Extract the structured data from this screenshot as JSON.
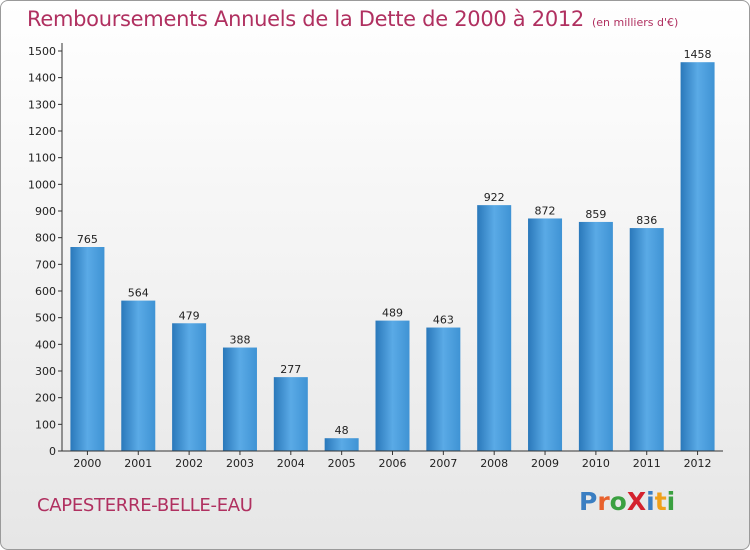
{
  "header": {
    "title": "Remboursements Annuels de la Dette de 2000 à 2012",
    "unit": "(en milliers d'€)"
  },
  "footer": {
    "commune": "CAPESTERRE-BELLE-EAU",
    "logo_letters": [
      {
        "ch": "P",
        "color": "#3a7ec2"
      },
      {
        "ch": "r",
        "color": "#e8612c"
      },
      {
        "ch": "o",
        "color": "#3aa040"
      },
      {
        "ch": "X",
        "color": "#d4222e"
      },
      {
        "ch": "i",
        "color": "#3a7ec2"
      },
      {
        "ch": "t",
        "color": "#f0a01a"
      },
      {
        "ch": "i",
        "color": "#3aa040"
      }
    ]
  },
  "chart_data": {
    "type": "bar",
    "categories": [
      "2000",
      "2001",
      "2002",
      "2003",
      "2004",
      "2005",
      "2006",
      "2007",
      "2008",
      "2009",
      "2010",
      "2011",
      "2012"
    ],
    "values": [
      765,
      564,
      479,
      388,
      277,
      48,
      489,
      463,
      922,
      872,
      859,
      836,
      1458
    ],
    "ylim": [
      0,
      1500
    ],
    "yticks": [
      0,
      100,
      200,
      300,
      400,
      500,
      600,
      700,
      800,
      900,
      1000,
      1100,
      1200,
      1300,
      1400,
      1500
    ],
    "grid": false,
    "bar_color": "#3f93d4",
    "bar_color_light": "#5aaae6",
    "bar_color_dark": "#2a78ba"
  }
}
